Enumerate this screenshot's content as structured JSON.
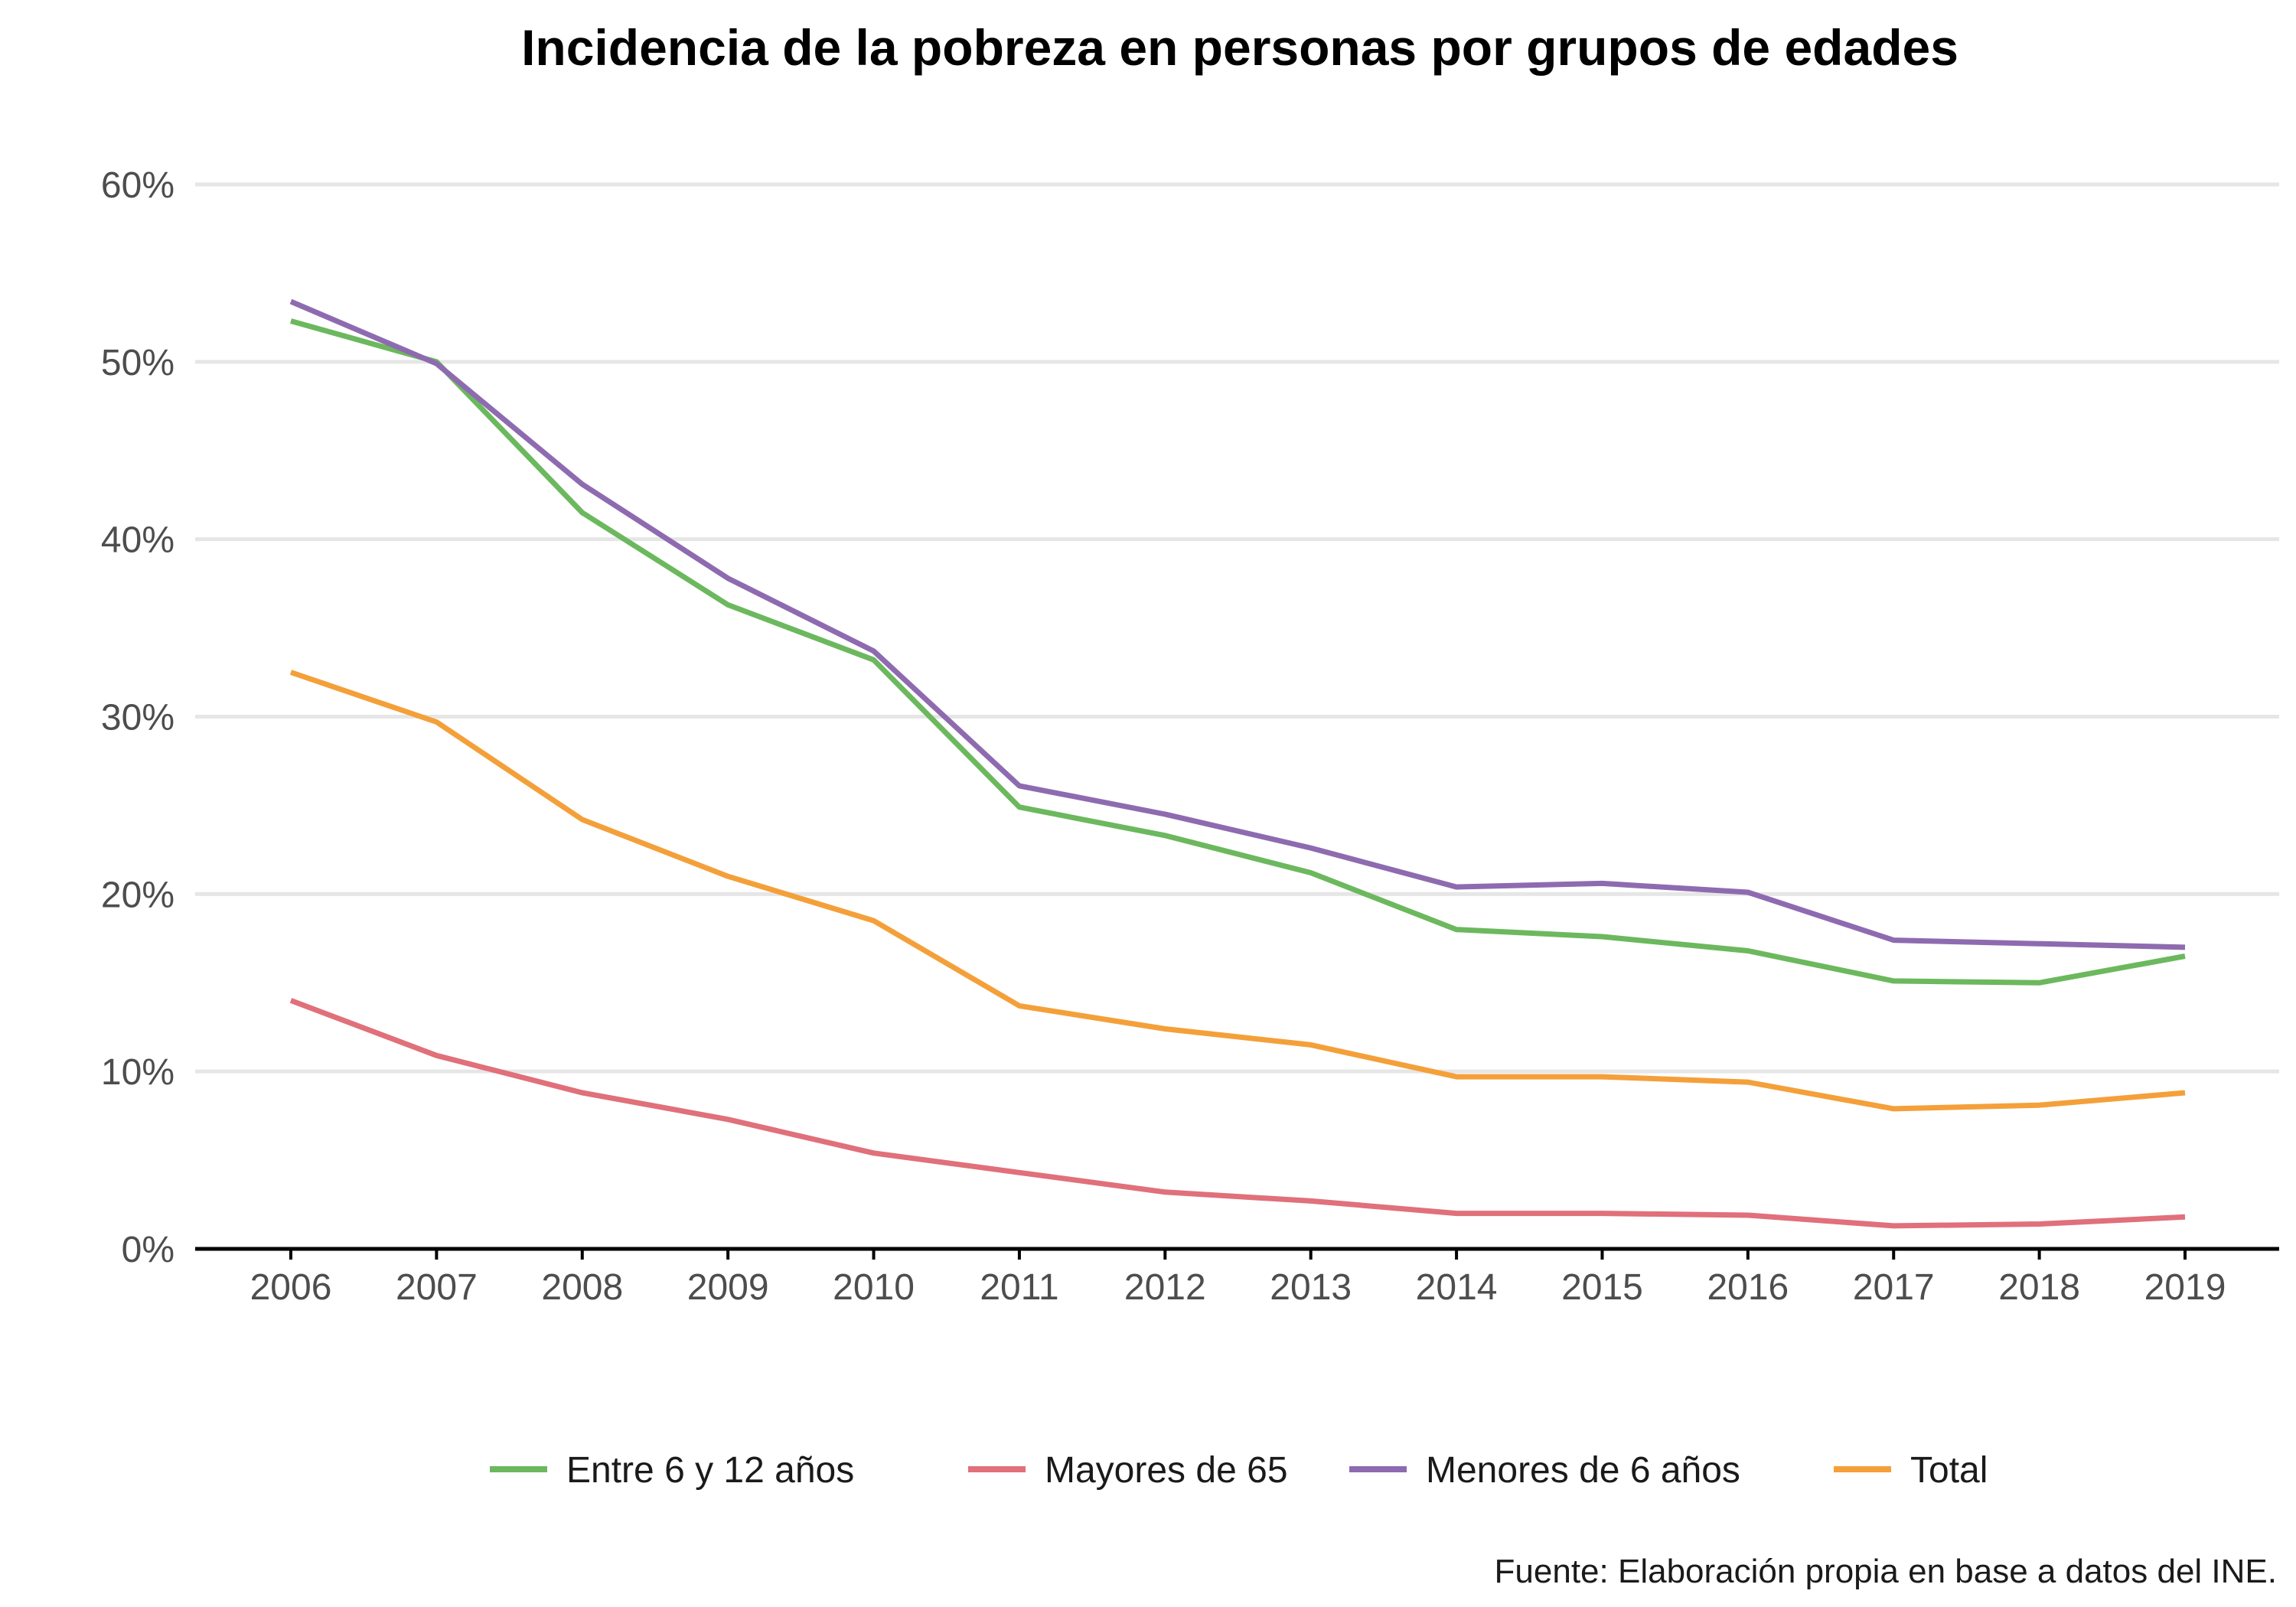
{
  "chart_data": {
    "type": "line",
    "title": "Incidencia de la pobreza en personas por grupos de edades",
    "source": "Fuente: Elaboración propia en base a datos del INE.",
    "x": [
      2006,
      2007,
      2008,
      2009,
      2010,
      2011,
      2012,
      2013,
      2014,
      2015,
      2016,
      2017,
      2018,
      2019
    ],
    "ylim": [
      0,
      60
    ],
    "yticks": [
      0,
      10,
      20,
      30,
      40,
      50,
      60
    ],
    "ytick_labels": [
      "0%",
      "10%",
      "20%",
      "30%",
      "40%",
      "50%",
      "60%"
    ],
    "grid": true,
    "legend_position": "bottom",
    "series": [
      {
        "name": "Entre 6 y 12 años",
        "color": "#6cb85e",
        "values": [
          52.3,
          50.0,
          41.5,
          36.3,
          33.2,
          24.9,
          23.3,
          21.2,
          18.0,
          17.6,
          16.8,
          15.1,
          15.0,
          16.5
        ]
      },
      {
        "name": "Mayores de 65",
        "color": "#e0707a",
        "values": [
          14.0,
          10.9,
          8.8,
          7.3,
          5.4,
          4.3,
          3.2,
          2.7,
          2.0,
          2.0,
          1.9,
          1.3,
          1.4,
          1.8
        ]
      },
      {
        "name": "Menores de 6 años",
        "color": "#8e6bb0",
        "values": [
          53.4,
          49.9,
          43.1,
          37.8,
          33.7,
          26.1,
          24.5,
          22.6,
          20.4,
          20.6,
          20.1,
          17.4,
          17.2,
          17.0
        ]
      },
      {
        "name": "Total",
        "color": "#f4a03a",
        "values": [
          32.5,
          29.7,
          24.2,
          21.0,
          18.5,
          13.7,
          12.4,
          11.5,
          9.7,
          9.7,
          9.4,
          7.9,
          8.1,
          8.8
        ]
      }
    ]
  }
}
